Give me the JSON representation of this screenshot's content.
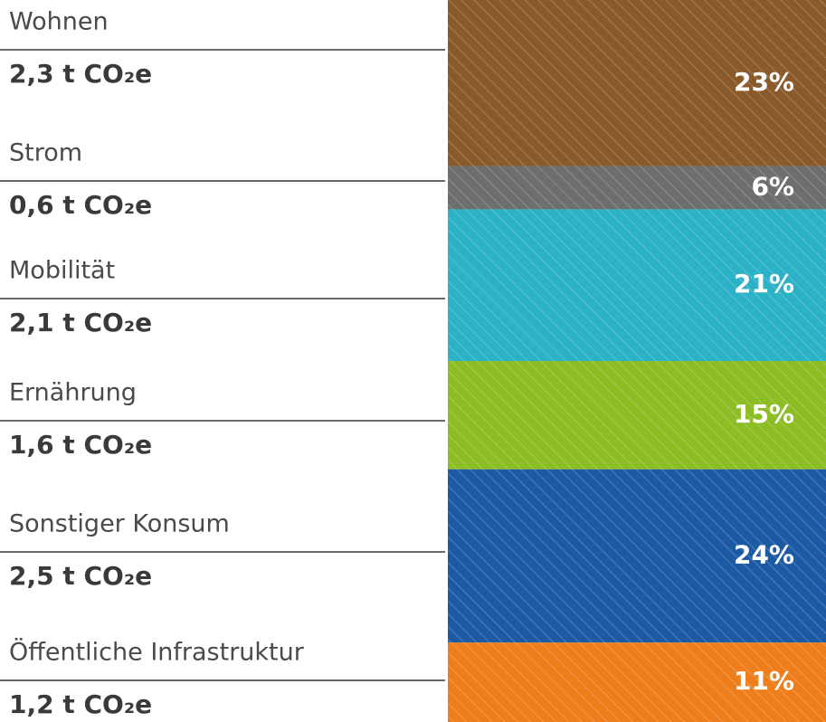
{
  "chart_data": {
    "type": "stacked-bar",
    "categories": [
      "Wohnen",
      "Strom",
      "Mobilität",
      "Ernährung",
      "Sonstiger Konsum",
      "Öffentliche Infrastruktur"
    ],
    "amounts": [
      "2,3 t CO₂e",
      "0,6 t CO₂e",
      "2,1 t CO₂e",
      "1,6 t CO₂e",
      "2,5 t CO₂e",
      "1,2 t CO₂e"
    ],
    "values": [
      23,
      6,
      21,
      15,
      24,
      11
    ],
    "value_labels": [
      "23%",
      "6%",
      "21%",
      "15%",
      "24%",
      "11%"
    ],
    "colors": [
      "#8a5a2b",
      "#6d6e70",
      "#2cb2c6",
      "#8dbd24",
      "#1d5aa6",
      "#ee7e1b"
    ]
  }
}
